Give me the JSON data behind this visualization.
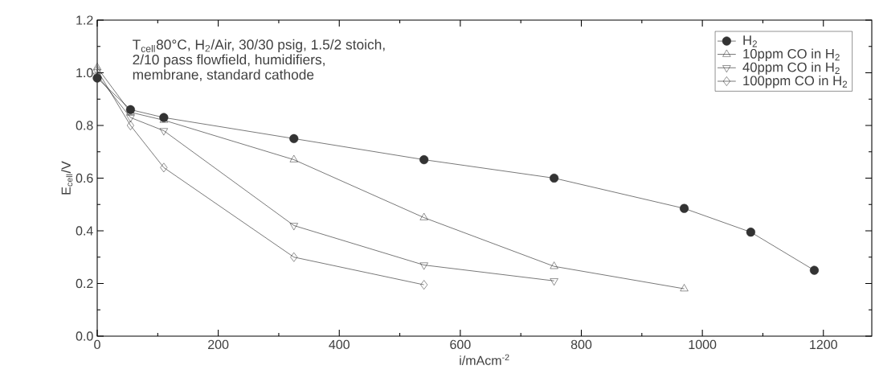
{
  "chart_data": {
    "type": "line",
    "xlabel": "i/mAcm$^{-2}$",
    "ylabel": "E$_{cell}$/V",
    "annotations": [
      "T$_{cell}$80°C, H$_{2}$/Air, 30/30 psig, 1.5/2 stoich,",
      "2/10 pass flowfield, humidifiers,",
      "membrane, standard cathode"
    ],
    "series": [
      {
        "name": "H$_{2}$",
        "color": "#333333",
        "marker": "circle",
        "x": [
          0,
          55,
          110,
          325,
          540,
          755,
          970,
          1080,
          1185
        ],
        "values": [
          0.98,
          0.86,
          0.83,
          0.75,
          0.67,
          0.6,
          0.485,
          0.395,
          0.25
        ]
      },
      {
        "name": "10ppm CO in H$_{2}$",
        "color": "#333333",
        "marker": "triangle",
        "x": [
          0,
          55,
          110,
          325,
          540,
          755,
          970
        ],
        "values": [
          1.02,
          0.85,
          0.82,
          0.67,
          0.45,
          0.265,
          0.18
        ]
      },
      {
        "name": "40ppm CO in H$_{2}$",
        "color": "#333333",
        "marker": "triangle down",
        "x": [
          0,
          55,
          110,
          325,
          540,
          755
        ],
        "values": [
          0.99,
          0.83,
          0.78,
          0.42,
          0.27,
          0.21
        ]
      },
      {
        "name": "100ppm CO in H$_{2}$",
        "color": "#333333",
        "marker": "diamond",
        "x": [
          0,
          55,
          110,
          325,
          540
        ],
        "values": [
          1.01,
          0.8,
          0.64,
          0.3,
          0.195
        ]
      }
    ],
    "xlim": [
      0,
      1280
    ],
    "ylim": [
      0,
      1.2
    ],
    "xticks": [
      0,
      200,
      400,
      600,
      800,
      1000,
      1200
    ],
    "yticks": [
      {
        "value": 0,
        "label": "0.0"
      },
      0.2,
      0.4,
      0.6,
      0.8,
      {
        "value": 1,
        "label": "1.0"
      },
      1.2
    ],
    "legend": "top right",
    "grid": false,
    "line_style": "solid"
  }
}
